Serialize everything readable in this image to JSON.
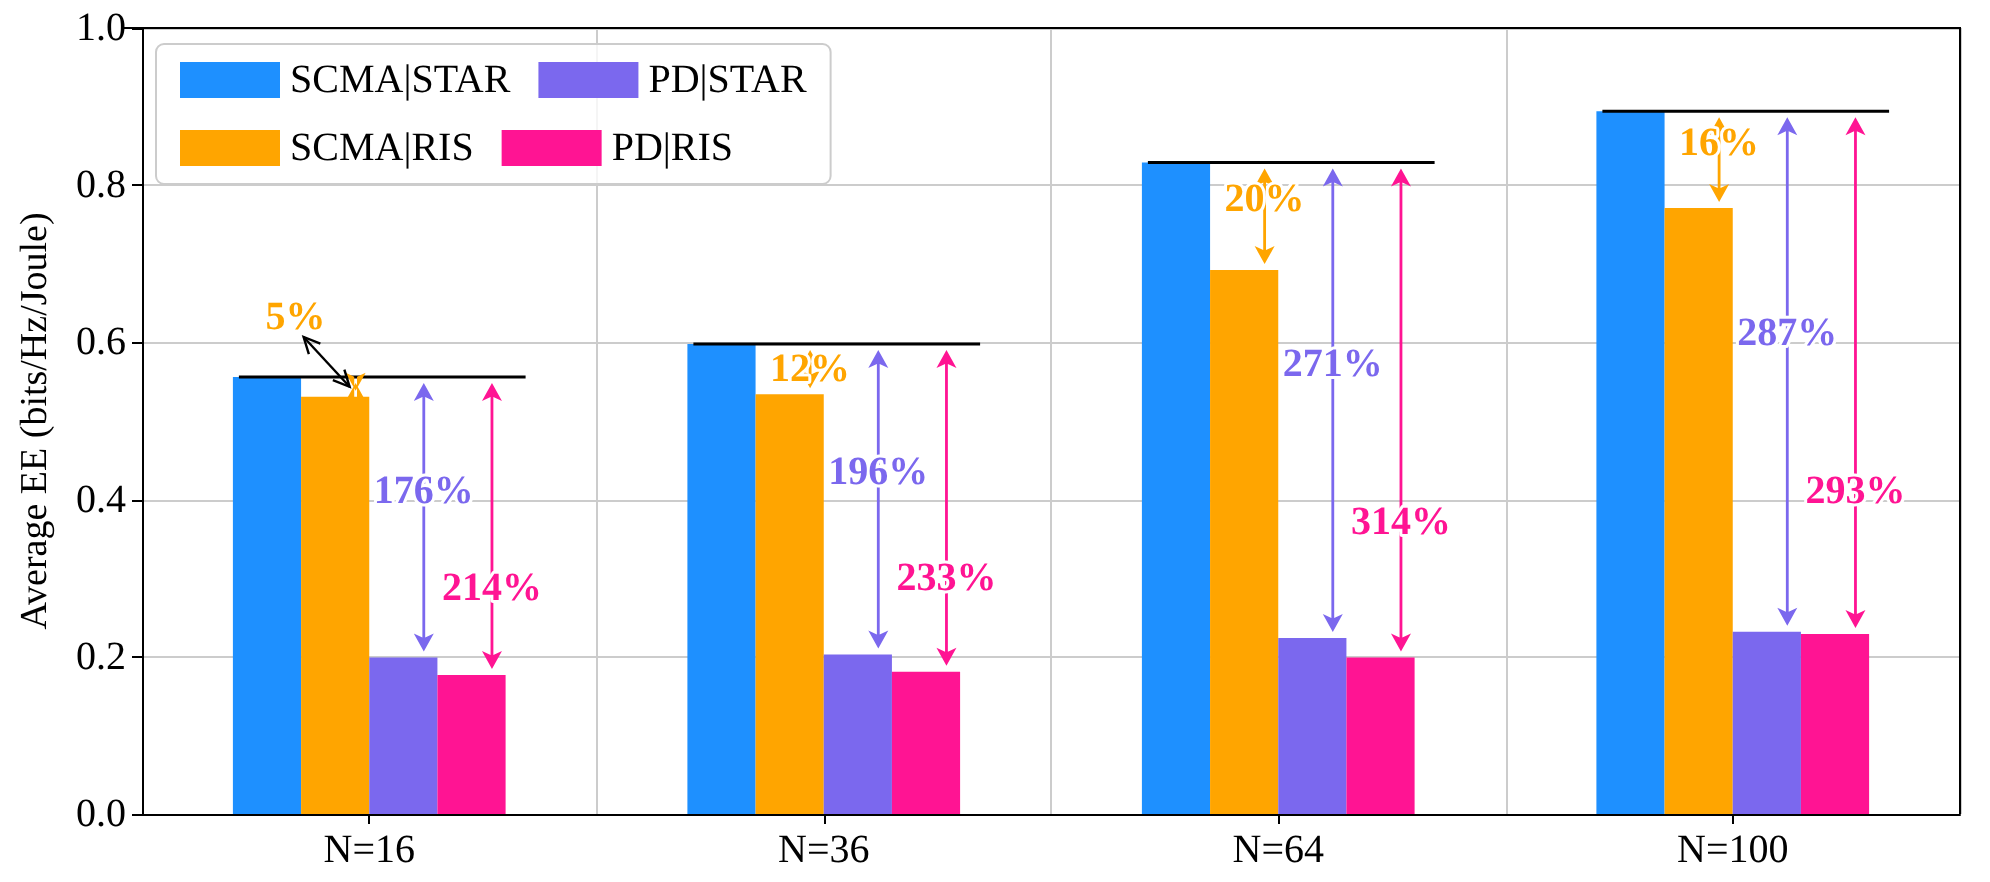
{
  "chart_data": {
    "type": "bar",
    "ylabel": "Average EE (bits/Hz/Joule)",
    "categories": [
      "N=16",
      "N=36",
      "N=64",
      "N=100"
    ],
    "series": [
      {
        "name": "SCMA|STAR",
        "color": "#1e90ff",
        "values": [
          0.556,
          0.598,
          0.829,
          0.894
        ]
      },
      {
        "name": "SCMA|RIS",
        "color": "#ffa500",
        "values": [
          0.531,
          0.534,
          0.692,
          0.771
        ]
      },
      {
        "name": "PD|STAR",
        "color": "#7b68ee",
        "values": [
          0.199,
          0.203,
          0.224,
          0.232
        ]
      },
      {
        "name": "PD|RIS",
        "color": "#ff1493",
        "values": [
          0.177,
          0.181,
          0.199,
          0.229
        ]
      }
    ],
    "ylim": [
      0,
      1
    ],
    "yticks": [
      {
        "value": 0,
        "label": "0.0"
      },
      {
        "value": 0.2,
        "label": "0.2"
      },
      {
        "value": 0.4,
        "label": "0.4"
      },
      {
        "value": 0.6,
        "label": "0.6"
      },
      {
        "value": 0.8,
        "label": "0.8"
      },
      {
        "value": 1,
        "label": "1.0"
      }
    ],
    "grid": true,
    "legend": "top left",
    "annotations": [
      "5%",
      "176%",
      "214%",
      "12%",
      "196%",
      "233%",
      "20%",
      "271%",
      "314%",
      "16%",
      "287%",
      "293%"
    ]
  }
}
